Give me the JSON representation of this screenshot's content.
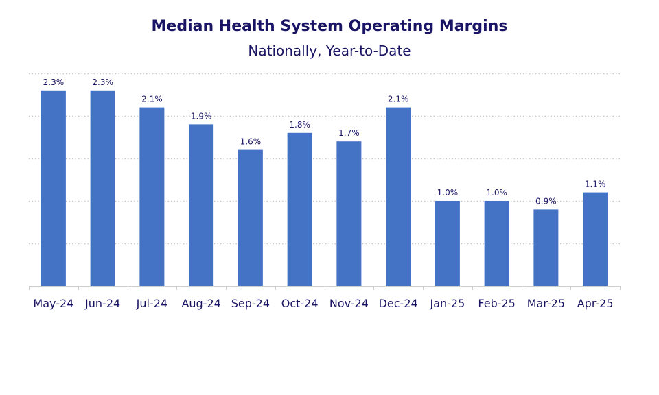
{
  "colors": {
    "bar": "#4472c4",
    "text": "#1a1464",
    "grid": "#c8c8c8",
    "axis": "#d0d0d0"
  },
  "chart_data": {
    "type": "bar",
    "title": "Median Health System Operating Margins",
    "subtitle": "Nationally, Year-to-Date",
    "xlabel": "",
    "ylabel": "",
    "categories": [
      "May-24",
      "Jun-24",
      "Jul-24",
      "Aug-24",
      "Sep-24",
      "Oct-24",
      "Nov-24",
      "Dec-24",
      "Jan-25",
      "Feb-25",
      "Mar-25",
      "Apr-25"
    ],
    "values": [
      2.3,
      2.3,
      2.1,
      1.9,
      1.6,
      1.8,
      1.7,
      2.1,
      1.0,
      1.0,
      0.9,
      1.1
    ],
    "data_labels": [
      "2.3%",
      "2.3%",
      "2.1%",
      "1.9%",
      "1.6%",
      "1.8%",
      "1.7%",
      "2.1%",
      "1.0%",
      "1.0%",
      "0.9%",
      "1.1%"
    ],
    "ylim": [
      0,
      2.5
    ],
    "y_gridlines": [
      0.5,
      1.0,
      1.5,
      2.0,
      2.5
    ],
    "grid": true,
    "gridline_style": "dotted",
    "legend": "none"
  }
}
